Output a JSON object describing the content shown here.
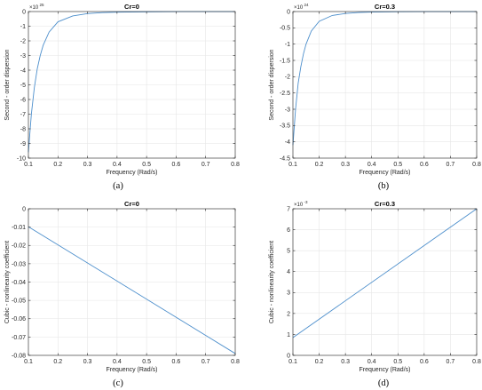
{
  "colors": {
    "line": "#4d8fcc",
    "axis": "#262626",
    "grid": "#e6e6e6"
  },
  "chart_data": [
    {
      "id": "a",
      "type": "line",
      "title": "Cr=0",
      "xlabel": "Frequency (Rad/s)",
      "ylabel": "Second - order dispersion",
      "caption": "(a)",
      "exponent_base": "×10",
      "exponent_power": "25",
      "xlim": [
        0.1,
        0.8
      ],
      "ylim": [
        -10,
        0
      ],
      "grid": true,
      "xticks": [
        0.1,
        0.2,
        0.3,
        0.4,
        0.5,
        0.6,
        0.7,
        0.8
      ],
      "xticklabels": [
        "0.1",
        "0.2",
        "0.3",
        "0.4",
        "0.5",
        "0.6",
        "0.7",
        "0.8"
      ],
      "yticks": [
        -10,
        -9,
        -8,
        -7,
        -6,
        -5,
        -4,
        -3,
        -2,
        -1,
        0
      ],
      "yticklabels": [
        "-10",
        "-9",
        "-8",
        "-7",
        "-6",
        "-5",
        "-4",
        "-3",
        "-2",
        "-1",
        "0"
      ],
      "series": [
        {
          "x": [
            0.1,
            0.11,
            0.12,
            0.13,
            0.14,
            0.15,
            0.17,
            0.2,
            0.25,
            0.3,
            0.35,
            0.4,
            0.5,
            0.6,
            0.7,
            0.8
          ],
          "y": [
            -9.6,
            -7.0,
            -5.2,
            -3.9,
            -3.0,
            -2.3,
            -1.4,
            -0.7,
            -0.3,
            -0.14,
            -0.07,
            -0.04,
            -0.015,
            -0.006,
            -0.003,
            -0.001
          ]
        }
      ]
    },
    {
      "id": "b",
      "type": "line",
      "title": "Cr=0.3",
      "xlabel": "Frequency (Rad/s)",
      "ylabel": "Second - order dispersion",
      "caption": "(b)",
      "exponent_base": "×10",
      "exponent_power": "24",
      "xlim": [
        0.1,
        0.8
      ],
      "ylim": [
        -4.5,
        0
      ],
      "grid": true,
      "xticks": [
        0.1,
        0.2,
        0.3,
        0.4,
        0.5,
        0.6,
        0.7,
        0.8
      ],
      "xticklabels": [
        "0.1",
        "0.2",
        "0.3",
        "0.4",
        "0.5",
        "0.6",
        "0.7",
        "0.8"
      ],
      "yticks": [
        -4.5,
        -4,
        -3.5,
        -3,
        -2.5,
        -2,
        -1.5,
        -1,
        -0.5,
        0
      ],
      "yticklabels": [
        "-4.5",
        "-4",
        "-3.5",
        "-3",
        "-2.5",
        "-2",
        "-1.5",
        "-1",
        "-0.5",
        "0"
      ],
      "series": [
        {
          "x": [
            0.1,
            0.11,
            0.12,
            0.13,
            0.14,
            0.15,
            0.17,
            0.2,
            0.25,
            0.3,
            0.35,
            0.4,
            0.5,
            0.6,
            0.7,
            0.8
          ],
          "y": [
            -4.1,
            -3.0,
            -2.2,
            -1.7,
            -1.3,
            -1.0,
            -0.6,
            -0.3,
            -0.12,
            -0.06,
            -0.03,
            -0.016,
            -0.006,
            -0.003,
            -0.0013,
            -0.0006
          ]
        }
      ]
    },
    {
      "id": "c",
      "type": "line",
      "title": "Cr=0",
      "xlabel": "Frequency (Rad/s)",
      "ylabel": "Cubic - nonlinearity coefficient",
      "caption": "(c)",
      "exponent_base": "",
      "exponent_power": "",
      "xlim": [
        0.1,
        0.8
      ],
      "ylim": [
        -0.08,
        0
      ],
      "grid": true,
      "xticks": [
        0.1,
        0.2,
        0.3,
        0.4,
        0.5,
        0.6,
        0.7,
        0.8
      ],
      "xticklabels": [
        "0.1",
        "0.2",
        "0.3",
        "0.4",
        "0.5",
        "0.6",
        "0.7",
        "0.8"
      ],
      "yticks": [
        -0.08,
        -0.07,
        -0.06,
        -0.05,
        -0.04,
        -0.03,
        -0.02,
        -0.01,
        0
      ],
      "yticklabels": [
        "-0.08",
        "-0.07",
        "-0.06",
        "-0.05",
        "-0.04",
        "-0.03",
        "-0.02",
        "-0.01",
        "0"
      ],
      "series": [
        {
          "x": [
            0.1,
            0.8
          ],
          "y": [
            -0.0098,
            -0.079
          ]
        }
      ]
    },
    {
      "id": "d",
      "type": "line",
      "title": "Cr=0.3",
      "xlabel": "Frequency (Rad/s)",
      "ylabel": "Cubic - nonlinearity coefficient",
      "caption": "(d)",
      "exponent_base": "×10",
      "exponent_power": "-3",
      "xlim": [
        0.1,
        0.8
      ],
      "ylim": [
        0,
        7
      ],
      "grid": true,
      "xticks": [
        0.1,
        0.2,
        0.3,
        0.4,
        0.5,
        0.6,
        0.7,
        0.8
      ],
      "xticklabels": [
        "0.1",
        "0.2",
        "0.3",
        "0.4",
        "0.5",
        "0.6",
        "0.7",
        "0.8"
      ],
      "yticks": [
        0,
        1,
        2,
        3,
        4,
        5,
        6,
        7
      ],
      "yticklabels": [
        "0",
        "1",
        "2",
        "3",
        "4",
        "5",
        "6",
        "7"
      ],
      "series": [
        {
          "x": [
            0.1,
            0.8
          ],
          "y": [
            0.85,
            7.0
          ]
        }
      ]
    }
  ]
}
